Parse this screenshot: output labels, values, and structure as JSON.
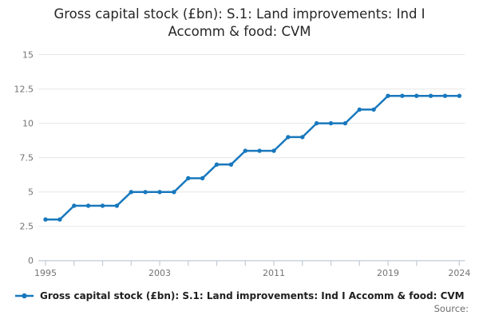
{
  "title_lines": [
    "Gross capital stock (£bn): S.1: Land improvements: Ind I",
    "Accomm & food: CVM"
  ],
  "legend": {
    "label": "Gross capital stock (£bn): S.1: Land improvements: Ind I Accomm & food: CVM"
  },
  "source_label": "Source:",
  "colors": {
    "line": "#1878bd",
    "grid": "#e6e6e6",
    "axis": "#c0ccd8",
    "tick_text": "#737373"
  },
  "chart_data": {
    "type": "line",
    "title": "Gross capital stock (£bn): S.1: Land improvements: Ind I Accomm & food: CVM",
    "x": [
      1995,
      1996,
      1997,
      1998,
      1999,
      2000,
      2001,
      2002,
      2003,
      2004,
      2005,
      2006,
      2007,
      2008,
      2009,
      2010,
      2011,
      2012,
      2013,
      2014,
      2015,
      2016,
      2017,
      2018,
      2019,
      2020,
      2021,
      2022,
      2023,
      2024
    ],
    "series": [
      {
        "name": "Gross capital stock (£bn): S.1: Land improvements: Ind I Accomm & food: CVM",
        "values": [
          3,
          3,
          4,
          4,
          4,
          4,
          5,
          5,
          5,
          5,
          6,
          6,
          7,
          7,
          8,
          8,
          8,
          9,
          9,
          10,
          10,
          10,
          11,
          11,
          12,
          12,
          12,
          12,
          12,
          12
        ]
      }
    ],
    "xlabel": "",
    "ylabel": "",
    "ylim": [
      0,
      15
    ],
    "yticks": [
      0,
      2.5,
      5,
      7.5,
      10,
      12.5,
      15
    ],
    "ytick_labels": [
      "0",
      "2.5",
      "5",
      "7.5",
      "10",
      "12.5",
      "15"
    ],
    "xtick_minor_years": [
      1995,
      1997,
      1999,
      2001,
      2003,
      2005,
      2007,
      2009,
      2011,
      2013,
      2015,
      2017,
      2019,
      2021,
      2024
    ],
    "xtick_label_years": [
      1995,
      2003,
      2011,
      2019,
      2024
    ],
    "grid": true,
    "marker": "circle",
    "legend_position": "bottom"
  }
}
